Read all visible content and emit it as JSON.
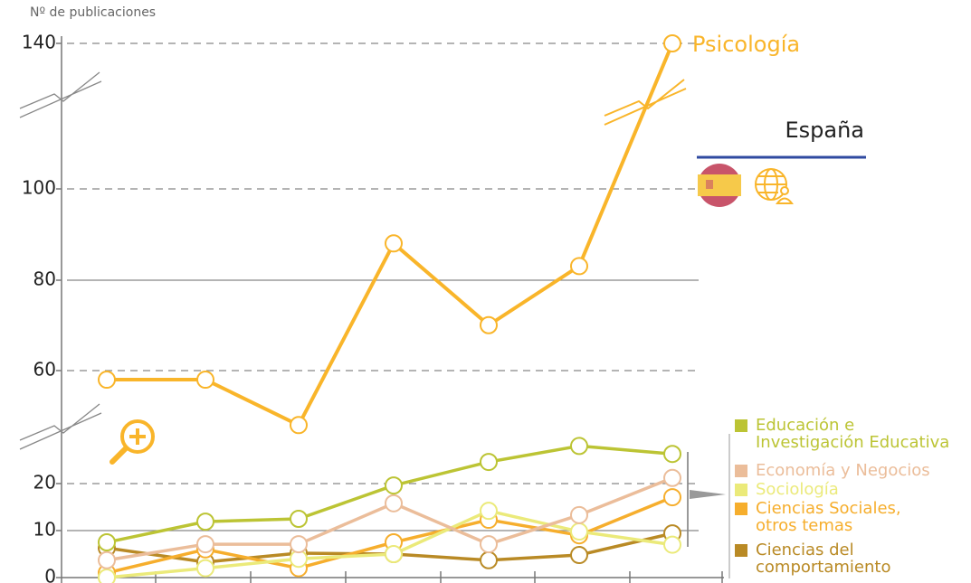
{
  "chart_data": {
    "type": "line",
    "y_label": "Nº de publicaciones",
    "title": "España",
    "categories": [
      null,
      null,
      null,
      null,
      null,
      null,
      null
    ],
    "ylim": [
      0,
      140
    ],
    "yticks": [
      0,
      10,
      20,
      60,
      80,
      100,
      140
    ],
    "grid": true,
    "series": [
      {
        "name": "Psicología",
        "color": "#f9b52a",
        "values": [
          58,
          58,
          48,
          88,
          70,
          83,
          140
        ]
      },
      {
        "name": "Educación e\nInvestigación Educativa",
        "color": "#bcc434",
        "values": [
          7.5,
          11.9,
          12.5,
          19.6,
          24.6,
          28,
          26.3
        ]
      },
      {
        "name": "Economía y Negocios",
        "color": "#ebbd9a",
        "values": [
          3.7,
          7.1,
          7.1,
          15.8,
          7.1,
          13.3,
          21.2
        ]
      },
      {
        "name": "Sociología",
        "color": "#ebea7a",
        "values": [
          0,
          2,
          4,
          5,
          14.2,
          9.8,
          7
        ]
      },
      {
        "name": "Ciencias Sociales,\notros temas",
        "color": "#f6ae2d",
        "values": [
          1,
          6,
          2,
          7.5,
          12.3,
          9,
          17.1
        ]
      },
      {
        "name": "Ciencias del\ncomportamiento",
        "color": "#b98a25",
        "values": [
          6.3,
          3.3,
          5.2,
          5,
          3.7,
          4.8,
          9.4
        ]
      }
    ]
  }
}
